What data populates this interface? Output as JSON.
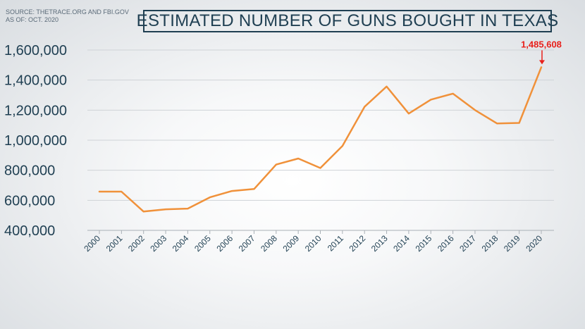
{
  "header": {
    "source_line1": "SOURCE: THETRACE.ORG AND FBI.GOV",
    "source_line2": "AS OF: OCT. 2020"
  },
  "colors": {
    "line": "#f0913a",
    "text": "#1f3f52",
    "grid": "#cfd3d7",
    "annotation": "#e8201b"
  },
  "chart_data": {
    "type": "line",
    "title": "ESTIMATED NUMBER OF GUNS BOUGHT IN TEXAS",
    "xlabel": "",
    "ylabel": "",
    "ylim": [
      400000,
      1600000
    ],
    "yticks": [
      "400,000",
      "600,000",
      "800,000",
      "1,000,000",
      "1,200,000",
      "1,400,000",
      "1,600,000"
    ],
    "grid": "horizontal",
    "categories": [
      "2000",
      "2001",
      "2002",
      "2003",
      "2004",
      "2005",
      "2006",
      "2007",
      "2008",
      "2009",
      "2010",
      "2011",
      "2012",
      "2013",
      "2014",
      "2015",
      "2016",
      "2017",
      "2018",
      "2019",
      "2020"
    ],
    "series": [
      {
        "values": [
          658000,
          658000,
          525000,
          540000,
          545000,
          620000,
          662000,
          675000,
          838000,
          878000,
          815000,
          962000,
          1222000,
          1357000,
          1177000,
          1270000,
          1310000,
          1200000,
          1111000,
          1115000,
          1485608
        ]
      }
    ],
    "annotation": {
      "category": "2020",
      "label": "1,485,608"
    }
  }
}
